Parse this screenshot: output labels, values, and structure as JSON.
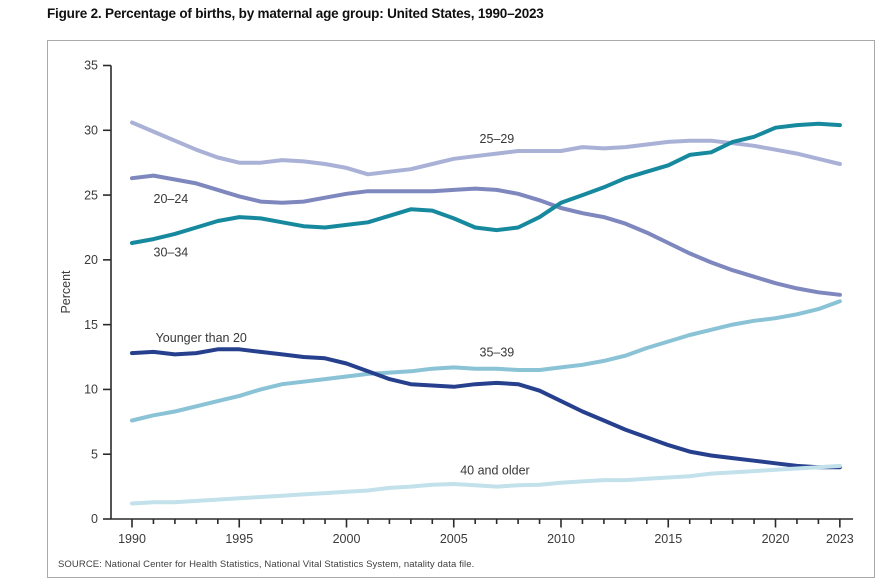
{
  "page": {
    "title": "Figure 2. Percentage of births, by maternal age group: United States, 1990–2023",
    "source": "SOURCE: National Center for Health Statistics, National Vital Statistics System, natality data file."
  },
  "chart_data": {
    "type": "line",
    "title": "Figure 2. Percentage of births, by maternal age group: United States, 1990–2023",
    "xlabel": "",
    "ylabel": "Percent",
    "ylim": [
      0,
      35
    ],
    "yticks": [
      0,
      5,
      10,
      15,
      20,
      25,
      30,
      35
    ],
    "xticks_labeled": [
      1990,
      1995,
      2000,
      2005,
      2010,
      2015,
      2020,
      2023
    ],
    "grid": "off",
    "legend": "inline-labels",
    "axis_color": "#2a2a2a",
    "tick_label_color": "#3b3b3b",
    "series_label_color": "#383838",
    "x": [
      1990,
      1991,
      1992,
      1993,
      1994,
      1995,
      1996,
      1997,
      1998,
      1999,
      2000,
      2001,
      2002,
      2003,
      2004,
      2005,
      2006,
      2007,
      2008,
      2009,
      2010,
      2011,
      2012,
      2013,
      2014,
      2015,
      2016,
      2017,
      2018,
      2019,
      2020,
      2021,
      2022,
      2023
    ],
    "series": [
      {
        "name": "25-29",
        "label": "25–29",
        "color": "#aab1d7",
        "label_anchor": {
          "x": 2006.2,
          "value": 29.35
        },
        "values": [
          30.6,
          29.9,
          29.2,
          28.5,
          27.9,
          27.5,
          27.5,
          27.7,
          27.6,
          27.4,
          27.1,
          26.6,
          26.8,
          27.0,
          27.4,
          27.8,
          28.0,
          28.2,
          28.4,
          28.4,
          28.4,
          28.7,
          28.6,
          28.7,
          28.9,
          29.1,
          29.2,
          29.2,
          29.0,
          28.8,
          28.5,
          28.2,
          27.8,
          27.4
        ]
      },
      {
        "name": "20-24",
        "label": "20–24",
        "color": "#7e87be",
        "label_anchor": {
          "x": 1991.0,
          "value": 24.7
        },
        "values": [
          26.3,
          26.5,
          26.2,
          25.9,
          25.4,
          24.9,
          24.5,
          24.4,
          24.5,
          24.8,
          25.1,
          25.3,
          25.3,
          25.3,
          25.3,
          25.4,
          25.5,
          25.4,
          25.1,
          24.6,
          24.0,
          23.6,
          23.3,
          22.8,
          22.1,
          21.3,
          20.5,
          19.8,
          19.2,
          18.7,
          18.2,
          17.8,
          17.5,
          17.3
        ]
      },
      {
        "name": "35-39",
        "label": "35–39",
        "color": "#8ac2d6",
        "label_anchor": {
          "x": 2006.2,
          "value": 12.85
        },
        "values": [
          7.6,
          8.0,
          8.3,
          8.7,
          9.1,
          9.5,
          10.0,
          10.4,
          10.6,
          10.8,
          11.0,
          11.2,
          11.3,
          11.4,
          11.6,
          11.7,
          11.6,
          11.6,
          11.5,
          11.5,
          11.7,
          11.9,
          12.2,
          12.6,
          13.2,
          13.7,
          14.2,
          14.6,
          15.0,
          15.3,
          15.5,
          15.8,
          16.2,
          16.8
        ]
      },
      {
        "name": "younger-than-20",
        "label": "Younger than 20",
        "color": "#27408e",
        "label_anchor": {
          "x": 1991.1,
          "value": 14.0
        },
        "values": [
          12.8,
          12.9,
          12.7,
          12.8,
          13.1,
          13.1,
          12.9,
          12.7,
          12.5,
          12.4,
          12.0,
          11.4,
          10.8,
          10.4,
          10.3,
          10.2,
          10.4,
          10.5,
          10.4,
          9.9,
          9.1,
          8.3,
          7.6,
          6.9,
          6.3,
          5.7,
          5.2,
          4.9,
          4.7,
          4.5,
          4.3,
          4.1,
          4.0,
          4.0
        ]
      },
      {
        "name": "40-and-older",
        "label": "40 and older",
        "color": "#c2e1eb",
        "label_anchor": {
          "x": 2005.3,
          "value": 3.75
        },
        "values": [
          1.2,
          1.3,
          1.3,
          1.4,
          1.5,
          1.6,
          1.7,
          1.8,
          1.9,
          2.0,
          2.1,
          2.2,
          2.4,
          2.5,
          2.65,
          2.7,
          2.6,
          2.5,
          2.6,
          2.65,
          2.8,
          2.9,
          3.0,
          3.0,
          3.1,
          3.2,
          3.3,
          3.5,
          3.6,
          3.7,
          3.8,
          3.9,
          4.0,
          4.1
        ]
      },
      {
        "name": "30-34",
        "label": "30–34",
        "color": "#17899e",
        "label_anchor": {
          "x": 1991.0,
          "value": 20.6
        },
        "values": [
          21.3,
          21.6,
          22.0,
          22.5,
          23.0,
          23.3,
          23.2,
          22.9,
          22.6,
          22.5,
          22.7,
          22.9,
          23.4,
          23.9,
          23.8,
          23.2,
          22.5,
          22.3,
          22.5,
          23.3,
          24.4,
          25.0,
          25.6,
          26.3,
          26.8,
          27.3,
          28.1,
          28.3,
          29.1,
          29.5,
          30.2,
          30.4,
          30.5,
          30.4
        ]
      }
    ]
  }
}
